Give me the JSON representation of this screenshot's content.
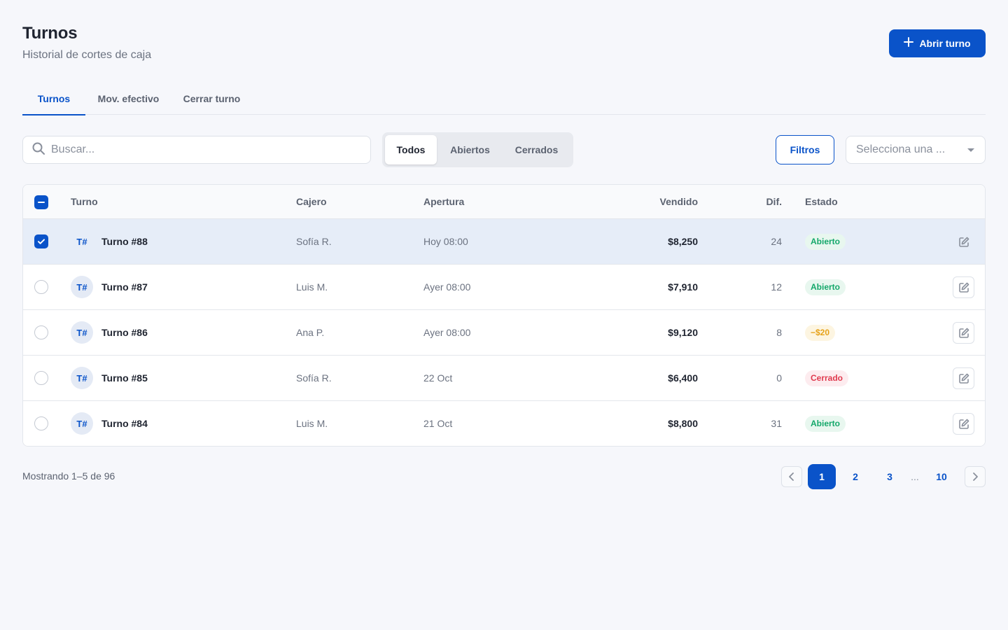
{
  "header": {
    "title": "Turnos",
    "subtitle": "Historial de cortes de caja",
    "primary_action": "Abrir turno"
  },
  "tabs": [
    {
      "label": "Turnos",
      "active": true
    },
    {
      "label": "Mov. efectivo",
      "active": false
    },
    {
      "label": "Cerrar turno",
      "active": false
    }
  ],
  "toolbar": {
    "search_placeholder": "Buscar...",
    "segments": [
      {
        "label": "Todos",
        "active": true
      },
      {
        "label": "Abiertos",
        "active": false
      },
      {
        "label": "Cerrados",
        "active": false
      }
    ],
    "filters_label": "Filtros",
    "select_placeholder": "Selecciona una ..."
  },
  "table": {
    "columns": {
      "turno": "Turno",
      "cajero": "Cajero",
      "apertura": "Apertura",
      "vendido": "Vendido",
      "dif": "Dif.",
      "estado": "Estado"
    },
    "rows": [
      {
        "avatar": "T#",
        "name": "Turno #88",
        "cajero": "Sofía R.",
        "apertura": "Hoy 08:00",
        "vendido": "$8,250",
        "dif": "24",
        "estado": "Abierto",
        "estado_type": "open",
        "selected": true
      },
      {
        "avatar": "T#",
        "name": "Turno #87",
        "cajero": "Luis M.",
        "apertura": "Ayer 08:00",
        "vendido": "$7,910",
        "dif": "12",
        "estado": "Abierto",
        "estado_type": "open",
        "selected": false
      },
      {
        "avatar": "T#",
        "name": "Turno #86",
        "cajero": "Ana P.",
        "apertura": "Ayer 08:00",
        "vendido": "$9,120",
        "dif": "8",
        "estado": "−$20",
        "estado_type": "warn",
        "selected": false
      },
      {
        "avatar": "T#",
        "name": "Turno #85",
        "cajero": "Sofía R.",
        "apertura": "22 Oct",
        "vendido": "$6,400",
        "dif": "0",
        "estado": "Cerrado",
        "estado_type": "closed",
        "selected": false
      },
      {
        "avatar": "T#",
        "name": "Turno #84",
        "cajero": "Luis M.",
        "apertura": "21 Oct",
        "vendido": "$8,800",
        "dif": "31",
        "estado": "Abierto",
        "estado_type": "open",
        "selected": false
      }
    ]
  },
  "footer": {
    "showing": "Mostrando 1–5 de 96",
    "pages": [
      "1",
      "2",
      "3",
      "...",
      "10"
    ],
    "current_page": "1"
  },
  "colors": {
    "accent": "#0a53c9",
    "open": "#14a86a",
    "warn": "#e6a21a",
    "closed": "#e03a4e",
    "selected_row": "#e6edf8"
  },
  "icons": {
    "primary_action": "plus-icon",
    "search": "search-icon",
    "select": "chevron-down-icon",
    "row_action": "edit-icon",
    "pager_prev": "chevron-left-icon",
    "pager_next": "chevron-right-icon"
  }
}
